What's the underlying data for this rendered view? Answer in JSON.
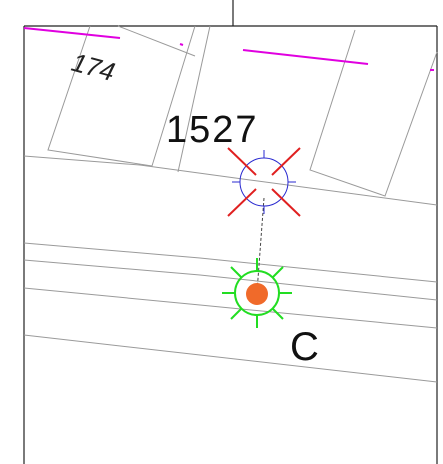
{
  "labels": {
    "parcel_a": "174",
    "parcel_b": "1527",
    "marker": "C"
  }
}
